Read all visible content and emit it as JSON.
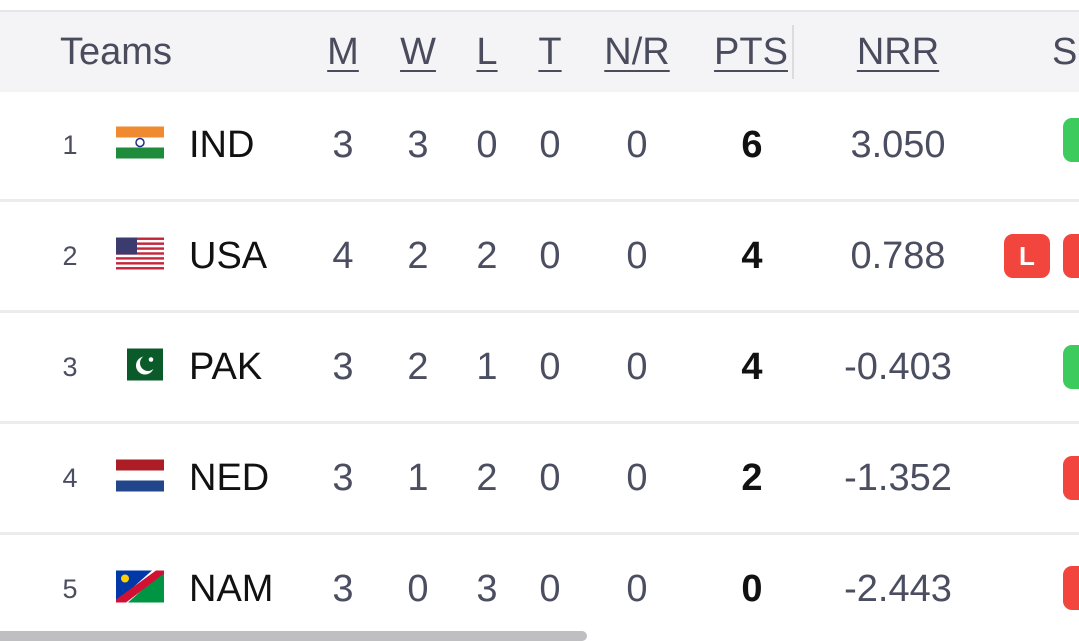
{
  "table": {
    "header": [
      "Teams",
      "M",
      "W",
      "L",
      "T",
      "N/R",
      "PTS",
      "NRR",
      "S"
    ],
    "rows": [
      {
        "rank": 1,
        "team": "IND",
        "m": 3,
        "w": 3,
        "l": 0,
        "t": 0,
        "nr": 0,
        "pts": 6,
        "nrr": "3.050",
        "form": []
      },
      {
        "rank": 2,
        "team": "USA",
        "m": 4,
        "w": 2,
        "l": 2,
        "t": 0,
        "nr": 0,
        "pts": 4,
        "nrr": "0.788",
        "form": [
          "L"
        ]
      },
      {
        "rank": 3,
        "team": "PAK",
        "m": 3,
        "w": 2,
        "l": 1,
        "t": 0,
        "nr": 0,
        "pts": 4,
        "nrr": "-0.403",
        "form": []
      },
      {
        "rank": 4,
        "team": "NED",
        "m": 3,
        "w": 1,
        "l": 2,
        "t": 0,
        "nr": 0,
        "pts": 2,
        "nrr": "-1.352",
        "form": []
      },
      {
        "rank": 5,
        "team": "NAM",
        "m": 3,
        "w": 0,
        "l": 3,
        "t": 0,
        "nr": 0,
        "pts": 0,
        "nrr": "-2.443",
        "form": []
      }
    ]
  }
}
